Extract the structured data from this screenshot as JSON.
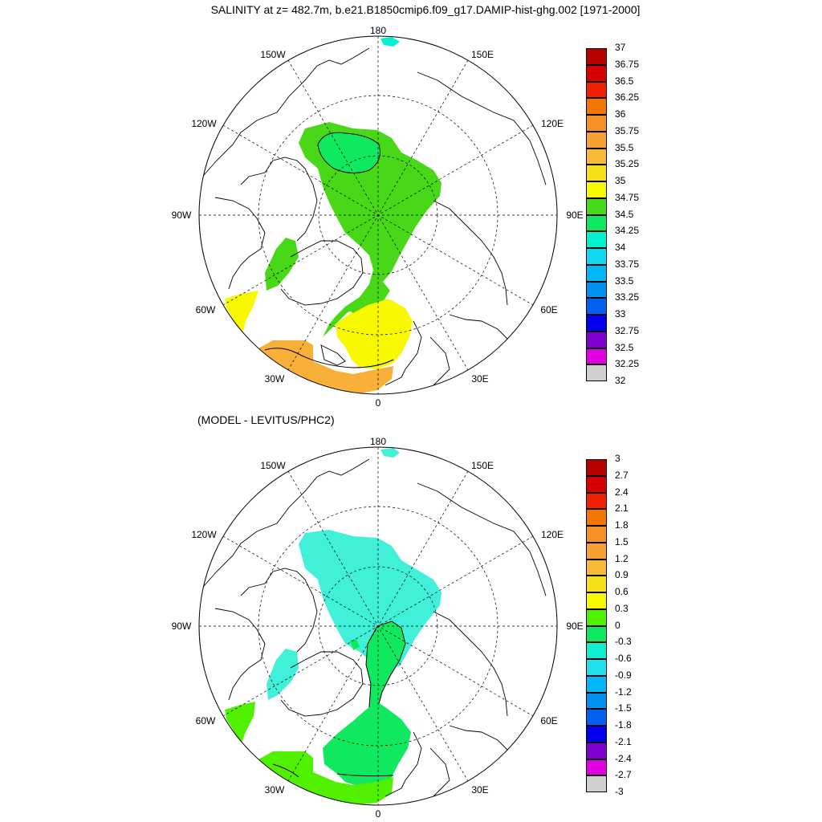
{
  "panels": [
    {
      "id": "salinity",
      "title": "SALINITY at z= 482.7m, b.e21.B1850cmip6.f09_g17.DAMIP-hist-ghg.002 [1971-2000]",
      "longitude_labels": {
        "n": "180",
        "nw": "150W",
        "ne": "150E",
        "wnw": "120W",
        "ene": "120E",
        "w": "90W",
        "e": "90E",
        "wsw": "60W",
        "ese": "60E",
        "sw": "30W",
        "se": "30E",
        "s": "0"
      },
      "colorbar": {
        "labels": [
          "37",
          "36.75",
          "36.5",
          "36.25",
          "36",
          "35.75",
          "35.5",
          "35.25",
          "35",
          "34.75",
          "34.5",
          "34.25",
          "34",
          "33.75",
          "33.5",
          "33.25",
          "33",
          "32.75",
          "32.5",
          "32.25",
          "32"
        ],
        "colors": [
          "#b80000",
          "#d80000",
          "#f02000",
          "#f07800",
          "#f89028",
          "#f8a030",
          "#f8b838",
          "#f8e018",
          "#f8f800",
          "#48d818",
          "#10e860",
          "#00f0d0",
          "#10d8f0",
          "#00b8f8",
          "#0090f0",
          "#0060f0",
          "#0000f0",
          "#8000d0",
          "#e000e0",
          "#d0d0d0",
          "#707070"
        ]
      }
    },
    {
      "id": "difference",
      "title": "(MODEL - LEVITUS/PHC2)",
      "longitude_labels": {
        "n": "180",
        "nw": "150W",
        "ne": "150E",
        "wnw": "120W",
        "ene": "120E",
        "w": "90W",
        "e": "90E",
        "wsw": "60W",
        "ese": "60E",
        "sw": "30W",
        "se": "30E",
        "s": "0"
      },
      "colorbar": {
        "labels": [
          "3",
          "2.7",
          "2.4",
          "2.1",
          "1.8",
          "1.5",
          "1.2",
          "0.9",
          "0.6",
          "0.3",
          "0",
          "-0.3",
          "-0.6",
          "-0.9",
          "-1.2",
          "-1.5",
          "-1.8",
          "-2.1",
          "-2.4",
          "-2.7",
          "-3"
        ],
        "colors": [
          "#b80000",
          "#d80000",
          "#f02000",
          "#f07800",
          "#f89028",
          "#f8a030",
          "#f8b838",
          "#f8e018",
          "#f8f800",
          "#50f000",
          "#10e860",
          "#10f0d0",
          "#20e0f0",
          "#00b8f8",
          "#0090f0",
          "#0060f0",
          "#0000f0",
          "#8000d0",
          "#e000e0",
          "#d0d0d0",
          "#707070"
        ]
      }
    }
  ],
  "colors": {
    "green": "#48d818",
    "bright_green": "#10e860",
    "yellow": "#f8f800",
    "orange": "#f8b038",
    "cyan_fill": "#40f0d8",
    "cyan2": "#00f0d0"
  }
}
